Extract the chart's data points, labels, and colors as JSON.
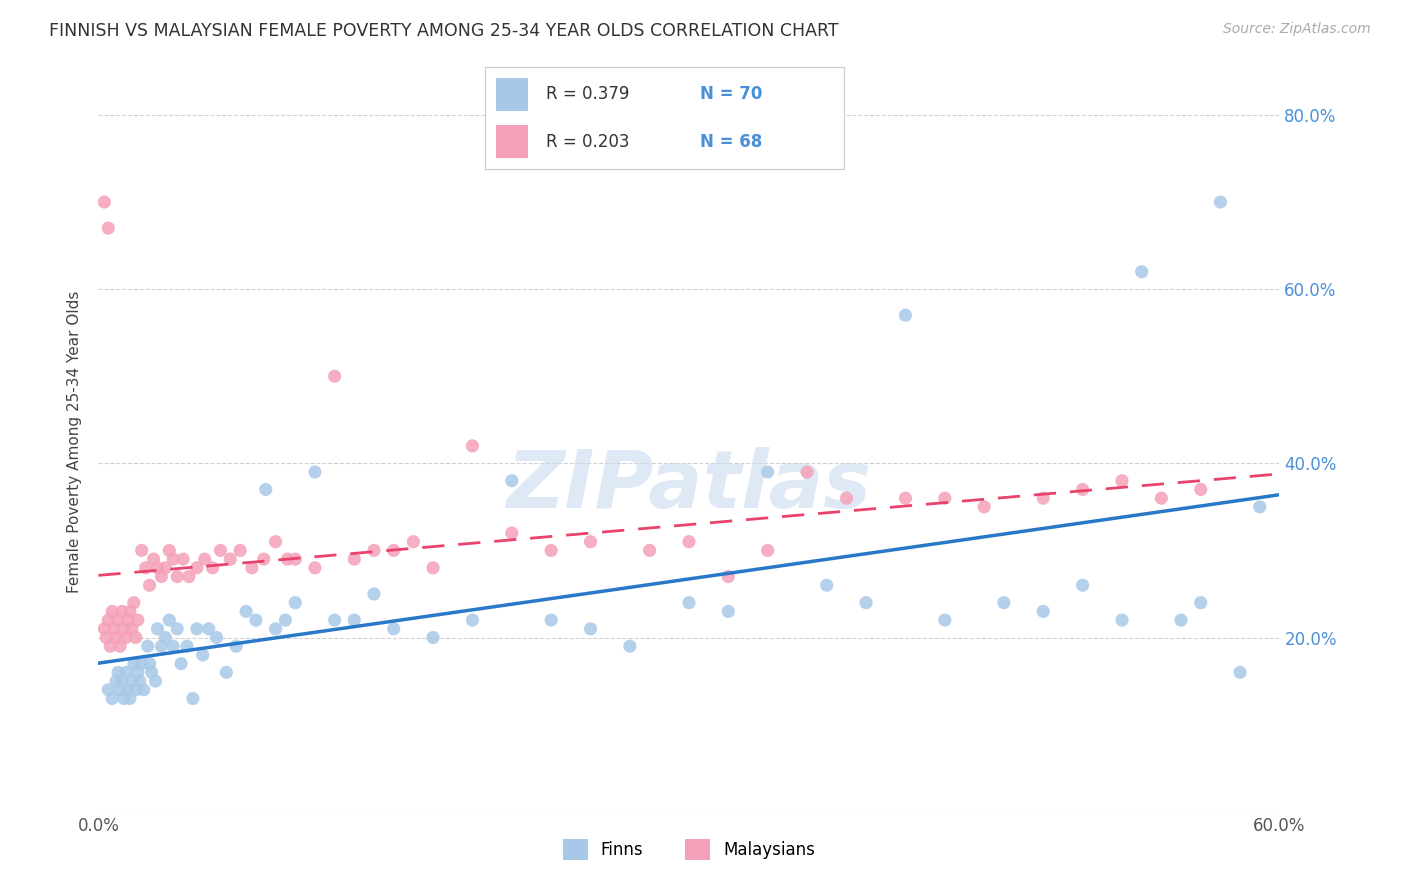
{
  "title": "FINNISH VS MALAYSIAN FEMALE POVERTY AMONG 25-34 YEAR OLDS CORRELATION CHART",
  "source": "Source: ZipAtlas.com",
  "ylabel": "Female Poverty Among 25-34 Year Olds",
  "xlim": [
    0.0,
    0.6
  ],
  "ylim": [
    0.0,
    0.85
  ],
  "finn_R": 0.379,
  "finn_N": 70,
  "malay_R": 0.203,
  "malay_N": 68,
  "finn_color": "#a8c8e8",
  "malay_color": "#f4a0b8",
  "finn_line_color": "#2979c8",
  "malay_line_color": "#e8436a",
  "right_axis_color": "#4a90d9",
  "watermark": "ZIPatlas",
  "finn_x": [
    0.005,
    0.007,
    0.009,
    0.01,
    0.011,
    0.012,
    0.013,
    0.014,
    0.015,
    0.016,
    0.017,
    0.018,
    0.019,
    0.02,
    0.021,
    0.022,
    0.023,
    0.025,
    0.026,
    0.027,
    0.029,
    0.03,
    0.032,
    0.034,
    0.036,
    0.038,
    0.04,
    0.042,
    0.045,
    0.048,
    0.05,
    0.053,
    0.056,
    0.06,
    0.065,
    0.07,
    0.075,
    0.08,
    0.085,
    0.09,
    0.095,
    0.1,
    0.11,
    0.12,
    0.13,
    0.14,
    0.15,
    0.17,
    0.19,
    0.21,
    0.23,
    0.25,
    0.27,
    0.3,
    0.32,
    0.34,
    0.37,
    0.39,
    0.41,
    0.43,
    0.46,
    0.48,
    0.5,
    0.52,
    0.53,
    0.55,
    0.56,
    0.57,
    0.58,
    0.59
  ],
  "finn_y": [
    0.14,
    0.13,
    0.15,
    0.16,
    0.14,
    0.15,
    0.13,
    0.16,
    0.14,
    0.13,
    0.15,
    0.17,
    0.14,
    0.16,
    0.15,
    0.17,
    0.14,
    0.19,
    0.17,
    0.16,
    0.15,
    0.21,
    0.19,
    0.2,
    0.22,
    0.19,
    0.21,
    0.17,
    0.19,
    0.13,
    0.21,
    0.18,
    0.21,
    0.2,
    0.16,
    0.19,
    0.23,
    0.22,
    0.37,
    0.21,
    0.22,
    0.24,
    0.39,
    0.22,
    0.22,
    0.25,
    0.21,
    0.2,
    0.22,
    0.38,
    0.22,
    0.21,
    0.19,
    0.24,
    0.23,
    0.39,
    0.26,
    0.24,
    0.57,
    0.22,
    0.24,
    0.23,
    0.26,
    0.22,
    0.62,
    0.22,
    0.24,
    0.7,
    0.16,
    0.35
  ],
  "malay_x": [
    0.003,
    0.004,
    0.005,
    0.006,
    0.007,
    0.008,
    0.009,
    0.01,
    0.011,
    0.012,
    0.013,
    0.014,
    0.015,
    0.016,
    0.017,
    0.018,
    0.019,
    0.02,
    0.022,
    0.024,
    0.026,
    0.028,
    0.03,
    0.032,
    0.034,
    0.036,
    0.038,
    0.04,
    0.043,
    0.046,
    0.05,
    0.054,
    0.058,
    0.062,
    0.067,
    0.072,
    0.078,
    0.084,
    0.09,
    0.096,
    0.1,
    0.11,
    0.12,
    0.13,
    0.14,
    0.15,
    0.16,
    0.17,
    0.19,
    0.21,
    0.23,
    0.25,
    0.28,
    0.3,
    0.32,
    0.34,
    0.36,
    0.38,
    0.41,
    0.43,
    0.45,
    0.48,
    0.5,
    0.52,
    0.54,
    0.56,
    0.003,
    0.005
  ],
  "malay_y": [
    0.21,
    0.2,
    0.22,
    0.19,
    0.23,
    0.21,
    0.2,
    0.22,
    0.19,
    0.23,
    0.21,
    0.2,
    0.22,
    0.23,
    0.21,
    0.24,
    0.2,
    0.22,
    0.3,
    0.28,
    0.26,
    0.29,
    0.28,
    0.27,
    0.28,
    0.3,
    0.29,
    0.27,
    0.29,
    0.27,
    0.28,
    0.29,
    0.28,
    0.3,
    0.29,
    0.3,
    0.28,
    0.29,
    0.31,
    0.29,
    0.29,
    0.28,
    0.5,
    0.29,
    0.3,
    0.3,
    0.31,
    0.28,
    0.42,
    0.32,
    0.3,
    0.31,
    0.3,
    0.31,
    0.27,
    0.3,
    0.39,
    0.36,
    0.36,
    0.36,
    0.35,
    0.36,
    0.37,
    0.38,
    0.36,
    0.37,
    0.7,
    0.67
  ]
}
